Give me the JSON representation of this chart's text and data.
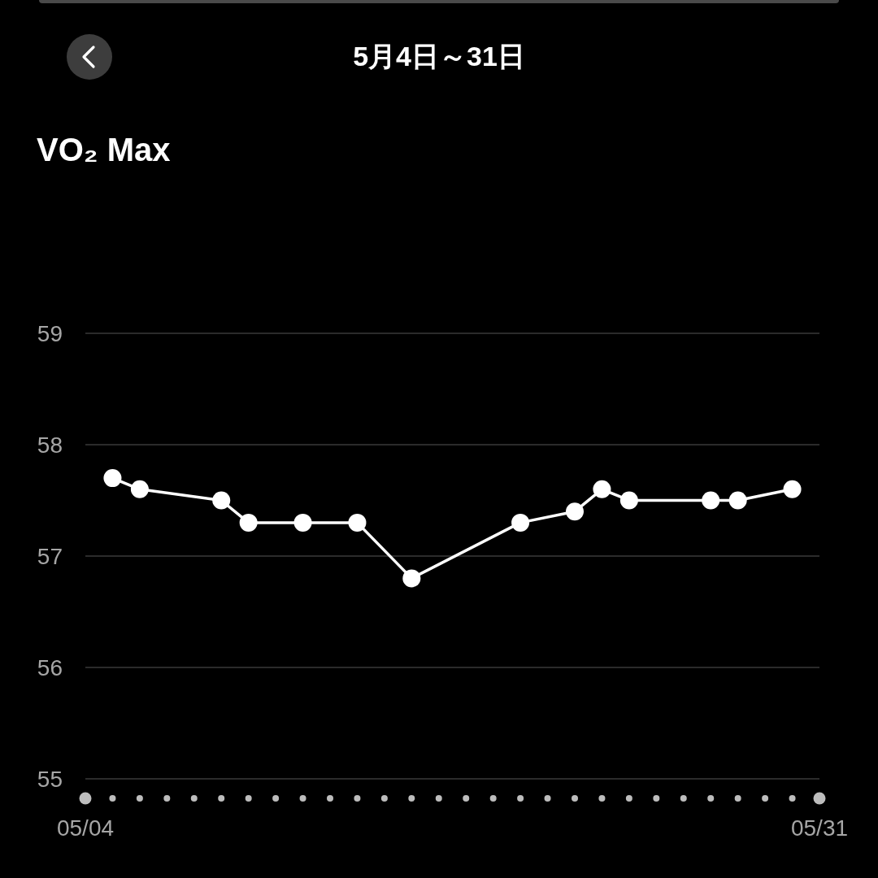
{
  "chart_data": {
    "type": "line",
    "title": "5月4日～31日",
    "subtitle": "VO₂ Max",
    "x": [
      "--05-05",
      "--05-06",
      "--05-09",
      "--05-10",
      "--05-12",
      "--05-14",
      "--05-16",
      "--05-20",
      "--05-22",
      "--05-23",
      "--05-24",
      "--05-27",
      "--05-28",
      "--05-30"
    ],
    "values": [
      57.7,
      57.6,
      57.5,
      57.3,
      57.3,
      57.3,
      56.8,
      57.3,
      57.4,
      57.6,
      57.5,
      57.5,
      57.5,
      57.6
    ],
    "color": "#ffffff",
    "marker": "circle",
    "line_style": "solid",
    "xlim": [
      "--05-04",
      "--05-31"
    ],
    "xticks": [
      {
        "value": "--05-04",
        "label": "05/04"
      },
      {
        "value": "--05-31",
        "label": "05/31"
      }
    ],
    "ylim": [
      55,
      59
    ],
    "yticks": [
      55,
      56,
      57,
      58,
      59
    ],
    "grid": "y"
  }
}
